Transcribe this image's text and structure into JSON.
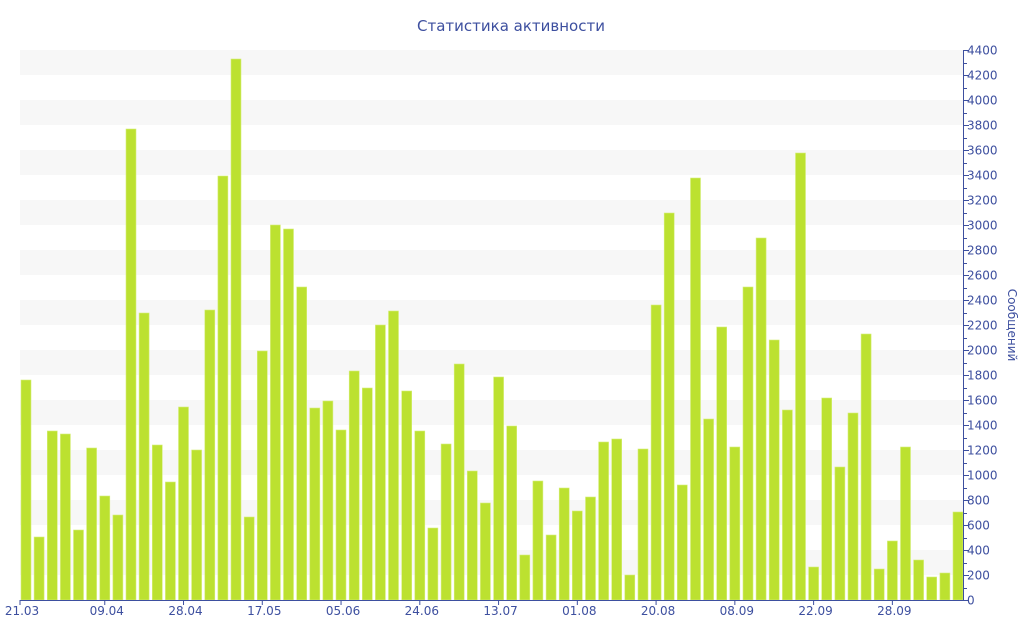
{
  "chart_data": {
    "type": "bar",
    "title": "Статистика активности",
    "xlabel": "",
    "ylabel": "Сообщений",
    "ylim": [
      0,
      4400
    ],
    "ytick_step": 200,
    "y_axis_side": "right",
    "grid": "alternating horizontal bands",
    "bar_color": "#bce130",
    "text_color": "#3d4f9f",
    "x_tick_labels": [
      {
        "index": 0,
        "label": "21.03"
      },
      {
        "index": 6,
        "label": "09.04"
      },
      {
        "index": 12,
        "label": "28.04"
      },
      {
        "index": 18,
        "label": "17.05"
      },
      {
        "index": 24,
        "label": "05.06"
      },
      {
        "index": 30,
        "label": "24.06"
      },
      {
        "index": 36,
        "label": "13.07"
      },
      {
        "index": 42,
        "label": "01.08"
      },
      {
        "index": 48,
        "label": "20.08"
      },
      {
        "index": 54,
        "label": "08.09"
      },
      {
        "index": 60,
        "label": "22.09"
      },
      {
        "index": 66,
        "label": "28.09"
      }
    ],
    "values": [
      1760,
      504,
      1352,
      1328,
      560,
      1216,
      832,
      680,
      3768,
      2296,
      1240,
      944,
      1544,
      1200,
      2320,
      3392,
      4328,
      664,
      1992,
      3000,
      2968,
      2504,
      1536,
      1592,
      1360,
      1832,
      1696,
      2200,
      2312,
      1672,
      1352,
      576,
      1248,
      1888,
      1032,
      776,
      1784,
      1392,
      360,
      952,
      520,
      896,
      712,
      824,
      1264,
      1288,
      200,
      1208,
      2360,
      3096,
      920,
      3376,
      1448,
      2184,
      1224,
      2504,
      2896,
      2080,
      1520,
      3576,
      264,
      1616,
      1064,
      1496,
      2128,
      248,
      472,
      1224,
      320,
      184,
      216,
      704
    ]
  }
}
